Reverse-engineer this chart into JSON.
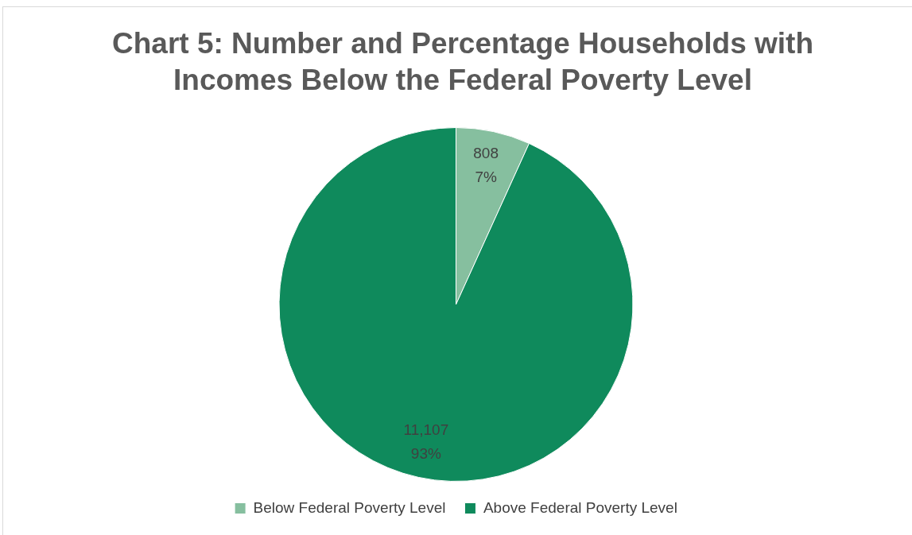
{
  "chart_data": {
    "type": "pie",
    "title": "Chart 5: Number and Percentage Households with Incomes Below the Federal Poverty Level",
    "categories": [
      "Below Federal Poverty Level",
      "Above Federal Poverty Level"
    ],
    "values": [
      808,
      11107
    ],
    "colors": [
      "#86bf9f",
      "#0f8a5c"
    ],
    "value_labels": [
      "808\n7%",
      "11,107\n93%"
    ],
    "legend": "bottom"
  }
}
